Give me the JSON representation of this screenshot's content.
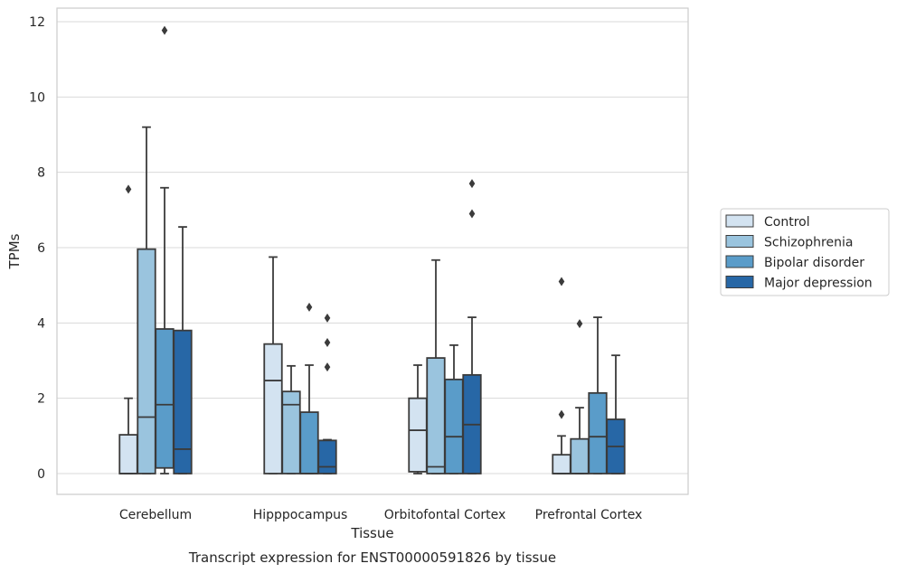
{
  "chart_data": {
    "type": "box",
    "title": "",
    "caption": "Transcript expression for ENST00000591826 by tissue",
    "xlabel": "Tissue",
    "ylabel": "TPMs",
    "ylim": [
      -0.55,
      12.35
    ],
    "yticks": [
      0,
      2,
      4,
      6,
      8,
      10,
      12
    ],
    "grid": "horizontal",
    "legend_position": "right",
    "categories": [
      "Cerebellum",
      "Hipppocampus",
      "Orbitofontal Cortex",
      "Prefrontal Cortex"
    ],
    "series": [
      {
        "name": "Control",
        "color": "#d3e3f1",
        "boxes": [
          {
            "whisker_low": 0,
            "q1": 0,
            "median": 0,
            "q3": 1.03,
            "whisker_high": 2.0,
            "outliers": [
              7.55
            ]
          },
          {
            "whisker_low": 0,
            "q1": 0,
            "median": 2.47,
            "q3": 3.44,
            "whisker_high": 5.75,
            "outliers": []
          },
          {
            "whisker_low": 0.0,
            "q1": 0.05,
            "median": 1.15,
            "q3": 2.0,
            "whisker_high": 2.88,
            "outliers": []
          },
          {
            "whisker_low": 0,
            "q1": 0,
            "median": 0,
            "q3": 0.5,
            "whisker_high": 1.0,
            "outliers": [
              1.57,
              5.1
            ]
          }
        ]
      },
      {
        "name": "Schizophrenia",
        "color": "#9ac4de",
        "boxes": [
          {
            "whisker_low": 0,
            "q1": 0,
            "median": 1.5,
            "q3": 5.96,
            "whisker_high": 9.2,
            "outliers": []
          },
          {
            "whisker_low": 0,
            "q1": 0,
            "median": 1.83,
            "q3": 2.18,
            "whisker_high": 2.86,
            "outliers": []
          },
          {
            "whisker_low": 0,
            "q1": 0,
            "median": 0.18,
            "q3": 3.07,
            "whisker_high": 5.67,
            "outliers": []
          },
          {
            "whisker_low": 0,
            "q1": 0,
            "median": 0,
            "q3": 0.92,
            "whisker_high": 1.75,
            "outliers": [
              3.98
            ]
          }
        ]
      },
      {
        "name": "Bipolar disorder",
        "color": "#5a9cc9",
        "boxes": [
          {
            "whisker_low": 0.0,
            "q1": 0.15,
            "median": 1.83,
            "q3": 3.84,
            "whisker_high": 7.59,
            "outliers": [
              11.77
            ]
          },
          {
            "whisker_low": 0,
            "q1": 0,
            "median": 0,
            "q3": 1.63,
            "whisker_high": 2.88,
            "outliers": [
              4.42
            ]
          },
          {
            "whisker_low": 0,
            "q1": 0,
            "median": 0.98,
            "q3": 2.5,
            "whisker_high": 3.41,
            "outliers": []
          },
          {
            "whisker_low": 0,
            "q1": 0,
            "median": 0.98,
            "q3": 2.14,
            "whisker_high": 4.15,
            "outliers": []
          }
        ]
      },
      {
        "name": "Major depression",
        "color": "#2767a6",
        "boxes": [
          {
            "whisker_low": 0,
            "q1": 0,
            "median": 0.65,
            "q3": 3.8,
            "whisker_high": 6.55,
            "outliers": []
          },
          {
            "whisker_low": 0,
            "q1": 0,
            "median": 0.18,
            "q3": 0.88,
            "whisker_high": 0.9,
            "outliers": [
              2.83,
              3.48,
              4.13
            ]
          },
          {
            "whisker_low": 0,
            "q1": 0,
            "median": 1.3,
            "q3": 2.62,
            "whisker_high": 4.15,
            "outliers": [
              6.9,
              7.7
            ]
          },
          {
            "whisker_low": 0,
            "q1": 0,
            "median": 0.72,
            "q3": 1.44,
            "whisker_high": 3.14,
            "outliers": []
          }
        ]
      }
    ]
  }
}
